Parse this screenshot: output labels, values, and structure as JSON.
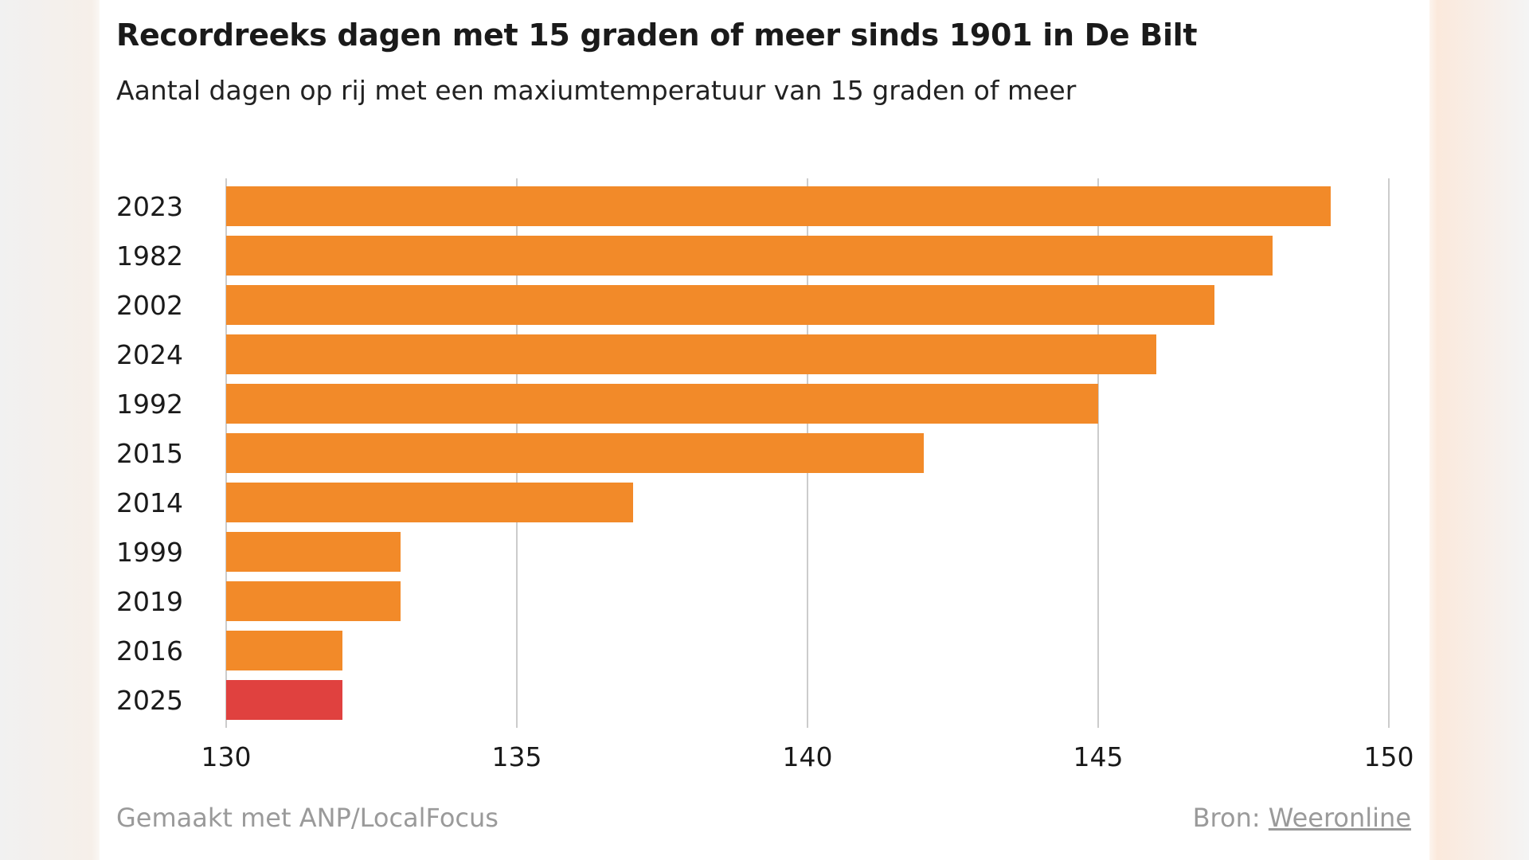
{
  "chart_data": {
    "type": "bar",
    "orientation": "horizontal",
    "title": "Recordreeks dagen met 15 graden of meer sinds 1901 in De Bilt",
    "subtitle": "Aantal dagen op rij met een maxiumtemperatuur van 15 graden of meer",
    "xlabel": "",
    "ylabel": "",
    "categories": [
      "2023",
      "1982",
      "2002",
      "2024",
      "1992",
      "2015",
      "2014",
      "1999",
      "2019",
      "2016",
      "2025"
    ],
    "values": [
      149,
      148,
      147,
      146,
      145,
      142,
      137,
      133,
      133,
      132,
      132
    ],
    "highlight": [
      "2025"
    ],
    "xlim": [
      130,
      150
    ],
    "xticks": [
      "130",
      "135",
      "140",
      "145",
      "150"
    ],
    "xtick_values": [
      130,
      135,
      140,
      145,
      150
    ],
    "grid": true,
    "colors": {
      "default": "#f28a29",
      "highlight": "#e0413f",
      "grid": "#cccccc"
    }
  },
  "footer": {
    "credit": "Gemaakt met ANP/LocalFocus",
    "source_label": "Bron:",
    "source_link": "Weeronline"
  }
}
